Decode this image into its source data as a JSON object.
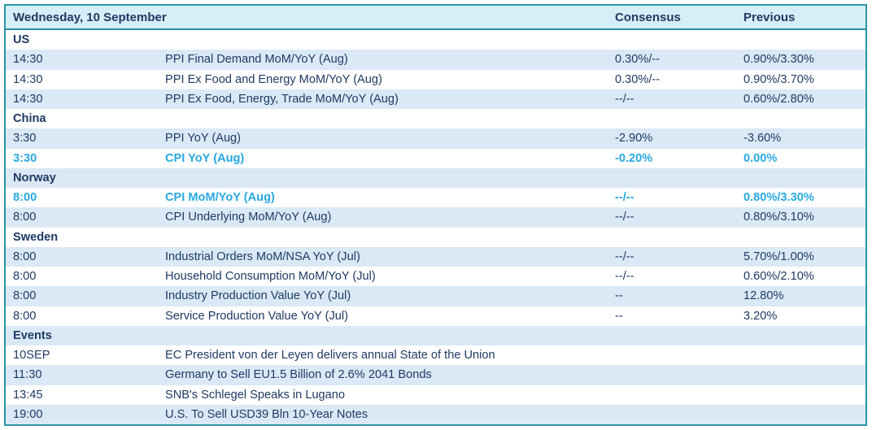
{
  "table": {
    "date_header": "Wednesday, 10 September",
    "columns": {
      "consensus": "Consensus",
      "previous": "Previous"
    },
    "rows": [
      {
        "type": "section",
        "label": "US"
      },
      {
        "type": "event",
        "time": "14:30",
        "name": "PPI Final Demand MoM/YoY (Aug)",
        "consensus": "0.30%/--",
        "previous": "0.90%/3.30%",
        "highlight": false
      },
      {
        "type": "event",
        "time": "14:30",
        "name": "PPI Ex Food and Energy MoM/YoY (Aug)",
        "consensus": "0.30%/--",
        "previous": "0.90%/3.70%",
        "highlight": false
      },
      {
        "type": "event",
        "time": "14:30",
        "name": "PPI Ex Food, Energy, Trade MoM/YoY (Aug)",
        "consensus": "--/--",
        "previous": "0.60%/2.80%",
        "highlight": false
      },
      {
        "type": "section",
        "label": "China"
      },
      {
        "type": "event",
        "time": "3:30",
        "name": "PPI YoY (Aug)",
        "consensus": "-2.90%",
        "previous": "-3.60%",
        "highlight": false
      },
      {
        "type": "event",
        "time": "3:30",
        "name": "CPI YoY (Aug)",
        "consensus": "-0.20%",
        "previous": "0.00%",
        "highlight": true
      },
      {
        "type": "section",
        "label": "Norway"
      },
      {
        "type": "event",
        "time": "8:00",
        "name": "CPI MoM/YoY (Aug)",
        "consensus": "--/--",
        "previous": "0.80%/3.30%",
        "highlight": true
      },
      {
        "type": "event",
        "time": "8:00",
        "name": "CPI Underlying MoM/YoY (Aug)",
        "consensus": "--/--",
        "previous": "0.80%/3.10%",
        "highlight": false
      },
      {
        "type": "section",
        "label": "Sweden"
      },
      {
        "type": "event",
        "time": "8:00",
        "name": "Industrial Orders MoM/NSA YoY (Jul)",
        "consensus": "--/--",
        "previous": "5.70%/1.00%",
        "highlight": false
      },
      {
        "type": "event",
        "time": "8:00",
        "name": "Household Consumption MoM/YoY (Jul)",
        "consensus": "--/--",
        "previous": "0.60%/2.10%",
        "highlight": false
      },
      {
        "type": "event",
        "time": "8:00",
        "name": "Industry Production Value YoY (Jul)",
        "consensus": "--",
        "previous": "12.80%",
        "highlight": false
      },
      {
        "type": "event",
        "time": "8:00",
        "name": "Service Production Value YoY (Jul)",
        "consensus": "--",
        "previous": "3.20%",
        "highlight": false
      },
      {
        "type": "section",
        "label": "Events"
      },
      {
        "type": "event",
        "time": "10SEP",
        "name": "EC President von der Leyen delivers annual State of the Union",
        "consensus": "",
        "previous": "",
        "highlight": false
      },
      {
        "type": "event",
        "time": "11:30",
        "name": "Germany to Sell EU1.5 Billion of 2.6% 2041 Bonds",
        "consensus": "",
        "previous": "",
        "highlight": false
      },
      {
        "type": "event",
        "time": "13:45",
        "name": "SNB's Schlegel Speaks in Lugano",
        "consensus": "",
        "previous": "",
        "highlight": false
      },
      {
        "type": "event",
        "time": "19:00",
        "name": "U.S. To Sell USD39 Bln 10-Year Notes",
        "consensus": "",
        "previous": "",
        "highlight": false
      }
    ]
  },
  "colors": {
    "border": "#2b93a3",
    "header_bg": "#d5eef7",
    "stripe_bg": "#dae9f5",
    "text": "#1f3a63",
    "highlight": "#29a9e0"
  }
}
